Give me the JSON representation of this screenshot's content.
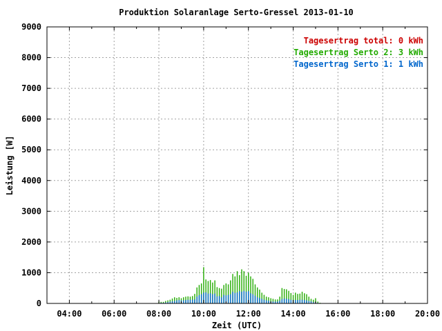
{
  "chart_data": {
    "type": "bar",
    "title": "Produktion Solaranlage Serto-Gressel 2013-01-10",
    "xlabel": "Zeit (UTC)",
    "ylabel": "Leistung [W]",
    "ylim": [
      0,
      9000
    ],
    "yticks": [
      "0",
      "1000",
      "2000",
      "3000",
      "4000",
      "5000",
      "6000",
      "7000",
      "8000",
      "9000"
    ],
    "xlim_hours": [
      3,
      20
    ],
    "xticks": [
      {
        "label": "04:00",
        "hour": 4
      },
      {
        "label": "06:00",
        "hour": 6
      },
      {
        "label": "08:00",
        "hour": 8
      },
      {
        "label": "10:00",
        "hour": 10
      },
      {
        "label": "12:00",
        "hour": 12
      },
      {
        "label": "14:00",
        "hour": 14
      },
      {
        "label": "16:00",
        "hour": 16
      },
      {
        "label": "18:00",
        "hour": 18
      },
      {
        "label": "20:00",
        "hour": 20
      }
    ],
    "grid": true,
    "legend_position": "top-right",
    "legend": [
      {
        "text": "Tagesertrag total: 0 kWh",
        "color": "#cc0000"
      },
      {
        "text": "Tagesertrag Serto 2: 3 kWh",
        "color": "#22aa00"
      },
      {
        "text": "Tagesertrag Serto 1: 1 kWh",
        "color": "#0066cc"
      }
    ],
    "series": [
      {
        "color": "#0066cc",
        "values": [
          [
            8.0,
            10
          ],
          [
            8.1,
            20
          ],
          [
            8.2,
            20
          ],
          [
            8.3,
            30
          ],
          [
            8.4,
            40
          ],
          [
            8.5,
            60
          ],
          [
            8.6,
            70
          ],
          [
            8.7,
            80
          ],
          [
            8.8,
            100
          ],
          [
            8.9,
            110
          ],
          [
            9.0,
            100
          ],
          [
            9.1,
            100
          ],
          [
            9.2,
            110
          ],
          [
            9.3,
            120
          ],
          [
            9.4,
            120
          ],
          [
            9.5,
            120
          ],
          [
            9.6,
            130
          ],
          [
            9.7,
            220
          ],
          [
            9.8,
            270
          ],
          [
            9.9,
            300
          ],
          [
            10.0,
            350
          ],
          [
            10.1,
            360
          ],
          [
            10.2,
            320
          ],
          [
            10.3,
            330
          ],
          [
            10.4,
            300
          ],
          [
            10.5,
            320
          ],
          [
            10.6,
            230
          ],
          [
            10.7,
            240
          ],
          [
            10.8,
            200
          ],
          [
            10.9,
            280
          ],
          [
            11.0,
            260
          ],
          [
            11.1,
            280
          ],
          [
            11.2,
            300
          ],
          [
            11.3,
            380
          ],
          [
            11.4,
            340
          ],
          [
            11.5,
            360
          ],
          [
            11.6,
            400
          ],
          [
            11.7,
            380
          ],
          [
            11.8,
            410
          ],
          [
            11.9,
            380
          ],
          [
            12.0,
            400
          ],
          [
            12.1,
            330
          ],
          [
            12.2,
            300
          ],
          [
            12.3,
            250
          ],
          [
            12.4,
            200
          ],
          [
            12.5,
            180
          ],
          [
            12.6,
            150
          ],
          [
            12.7,
            120
          ],
          [
            12.8,
            100
          ],
          [
            12.9,
            90
          ],
          [
            13.0,
            70
          ],
          [
            13.1,
            60
          ],
          [
            13.2,
            60
          ],
          [
            13.3,
            60
          ],
          [
            13.4,
            90
          ],
          [
            13.5,
            140
          ],
          [
            13.6,
            160
          ],
          [
            13.7,
            150
          ],
          [
            13.8,
            140
          ],
          [
            13.9,
            120
          ],
          [
            14.0,
            110
          ],
          [
            14.1,
            110
          ],
          [
            14.2,
            110
          ],
          [
            14.3,
            120
          ],
          [
            14.4,
            120
          ],
          [
            14.5,
            110
          ],
          [
            14.6,
            100
          ],
          [
            14.7,
            80
          ],
          [
            14.8,
            70
          ],
          [
            14.9,
            40
          ],
          [
            15.0,
            30
          ],
          [
            15.1,
            20
          ],
          [
            15.2,
            10
          ]
        ]
      },
      {
        "color": "#22aa00",
        "values": [
          [
            8.0,
            60
          ],
          [
            8.1,
            50
          ],
          [
            8.2,
            50
          ],
          [
            8.3,
            80
          ],
          [
            8.4,
            100
          ],
          [
            8.5,
            120
          ],
          [
            8.6,
            160
          ],
          [
            8.7,
            200
          ],
          [
            8.8,
            180
          ],
          [
            8.9,
            200
          ],
          [
            9.0,
            170
          ],
          [
            9.1,
            200
          ],
          [
            9.2,
            220
          ],
          [
            9.3,
            230
          ],
          [
            9.4,
            220
          ],
          [
            9.5,
            240
          ],
          [
            9.6,
            310
          ],
          [
            9.7,
            520
          ],
          [
            9.8,
            600
          ],
          [
            9.9,
            650
          ],
          [
            10.0,
            1180
          ],
          [
            10.1,
            780
          ],
          [
            10.2,
            730
          ],
          [
            10.3,
            760
          ],
          [
            10.4,
            680
          ],
          [
            10.5,
            750
          ],
          [
            10.6,
            530
          ],
          [
            10.7,
            500
          ],
          [
            10.8,
            480
          ],
          [
            10.9,
            600
          ],
          [
            11.0,
            650
          ],
          [
            11.1,
            620
          ],
          [
            11.2,
            750
          ],
          [
            11.3,
            960
          ],
          [
            11.4,
            880
          ],
          [
            11.5,
            1050
          ],
          [
            11.6,
            920
          ],
          [
            11.7,
            1110
          ],
          [
            11.8,
            1050
          ],
          [
            11.9,
            900
          ],
          [
            12.0,
            1000
          ],
          [
            12.1,
            880
          ],
          [
            12.2,
            800
          ],
          [
            12.3,
            620
          ],
          [
            12.4,
            520
          ],
          [
            12.5,
            450
          ],
          [
            12.6,
            350
          ],
          [
            12.7,
            280
          ],
          [
            12.8,
            220
          ],
          [
            12.9,
            200
          ],
          [
            13.0,
            170
          ],
          [
            13.1,
            150
          ],
          [
            13.2,
            130
          ],
          [
            13.3,
            130
          ],
          [
            13.4,
            220
          ],
          [
            13.5,
            500
          ],
          [
            13.6,
            470
          ],
          [
            13.7,
            460
          ],
          [
            13.8,
            410
          ],
          [
            13.9,
            340
          ],
          [
            14.0,
            280
          ],
          [
            14.1,
            350
          ],
          [
            14.2,
            310
          ],
          [
            14.3,
            320
          ],
          [
            14.4,
            380
          ],
          [
            14.5,
            330
          ],
          [
            14.6,
            300
          ],
          [
            14.7,
            220
          ],
          [
            14.8,
            150
          ],
          [
            14.9,
            120
          ],
          [
            15.0,
            170
          ],
          [
            15.1,
            60
          ],
          [
            15.2,
            20
          ]
        ]
      }
    ]
  }
}
